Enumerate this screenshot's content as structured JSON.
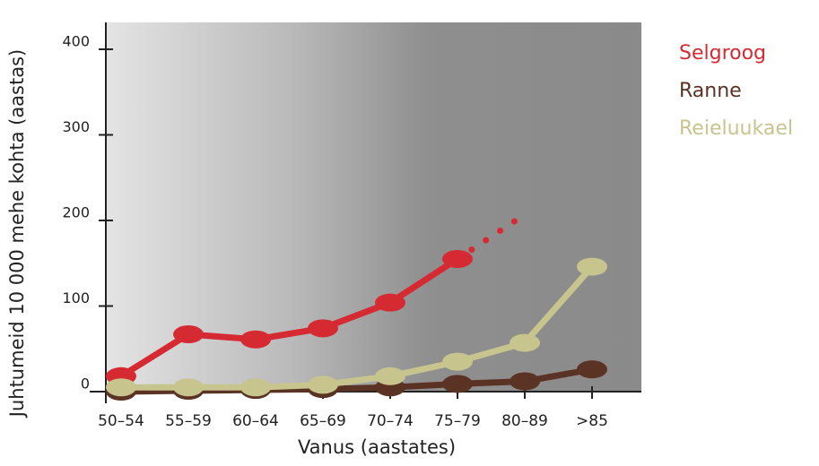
{
  "chart_data": {
    "type": "line",
    "y_label": "Juhtumeid 10 000 mehe kohta (aastas)",
    "x_label": "Vanus (aastates)",
    "categories": [
      "50–54",
      "55–59",
      "60–64",
      "65–69",
      "70–74",
      "75–79",
      "80–89",
      ">85"
    ],
    "ylim": [
      0,
      400
    ],
    "yticks": [
      0,
      100,
      200,
      300,
      400
    ],
    "series": [
      {
        "name": "Selgroog",
        "color": "#d62a33",
        "values": [
          18,
          67,
          61,
          74,
          104,
          155,
          null,
          null
        ],
        "projection_values": [
          null,
          null,
          null,
          null,
          null,
          155,
          207,
          null
        ]
      },
      {
        "name": "Ranne",
        "color": "#5a3324",
        "values": [
          0,
          1,
          2,
          3,
          5,
          9,
          12,
          26
        ]
      },
      {
        "name": "Reieluukael",
        "color": "#c8c48e",
        "values": [
          5,
          5,
          5,
          8,
          18,
          35,
          57,
          146
        ]
      }
    ]
  }
}
